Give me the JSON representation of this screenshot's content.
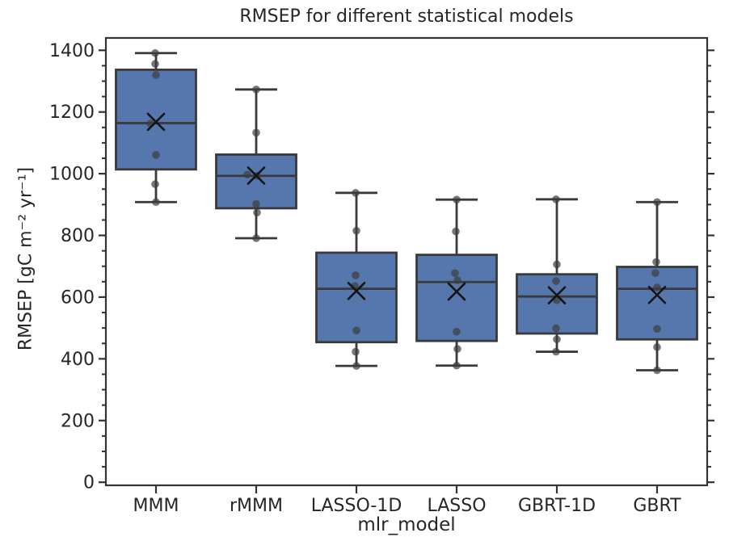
{
  "chart_data": {
    "type": "box",
    "title": "RMSEP for different statistical models",
    "xlabel": "mlr_model",
    "ylabel": "RMSEP [gC m⁻² yr⁻¹]",
    "categories": [
      "MMM",
      "rMMM",
      "LASSO-1D",
      "LASSO",
      "GBRT-1D",
      "GBRT"
    ],
    "ylim": [
      -10,
      1440
    ],
    "yticks": [
      0,
      200,
      400,
      600,
      800,
      1000,
      1200,
      1400
    ],
    "ytick_minor_step": 50,
    "grid": false,
    "legend": "none",
    "boxes": [
      {
        "label": "MMM",
        "whislo": 908,
        "q1": 1014,
        "med": 1164,
        "mean": 1168,
        "q3": 1337,
        "whishi": 1391,
        "points": [
          [
            1391,
            -1
          ],
          [
            1356,
            -1
          ],
          [
            1320,
            0
          ],
          [
            1162,
            -7
          ],
          [
            1061,
            0
          ],
          [
            966,
            -1
          ],
          [
            908,
            0
          ]
        ]
      },
      {
        "label": "rMMM",
        "whislo": 791,
        "q1": 888,
        "med": 993,
        "mean": 994,
        "q3": 1062,
        "whishi": 1273,
        "points": [
          [
            1273,
            0
          ],
          [
            1133,
            0
          ],
          [
            997,
            -11
          ],
          [
            993,
            1
          ],
          [
            902,
            0
          ],
          [
            874,
            1
          ],
          [
            791,
            0
          ]
        ]
      },
      {
        "label": "LASSO-1D",
        "whislo": 377,
        "q1": 454,
        "med": 627,
        "mean": 620,
        "q3": 744,
        "whishi": 938,
        "points": [
          [
            938,
            -1
          ],
          [
            815,
            0
          ],
          [
            671,
            -1
          ],
          [
            636,
            -2
          ],
          [
            492,
            0
          ],
          [
            423,
            -1
          ],
          [
            377,
            0
          ]
        ]
      },
      {
        "label": "LASSO",
        "whislo": 378,
        "q1": 458,
        "med": 649,
        "mean": 618,
        "q3": 737,
        "whishi": 916,
        "points": [
          [
            916,
            0
          ],
          [
            813,
            -1
          ],
          [
            678,
            -2
          ],
          [
            655,
            1
          ],
          [
            488,
            0
          ],
          [
            432,
            1
          ],
          [
            378,
            0
          ]
        ]
      },
      {
        "label": "GBRT-1D",
        "whislo": 423,
        "q1": 482,
        "med": 602,
        "mean": 606,
        "q3": 674,
        "whishi": 917,
        "points": [
          [
            917,
            -1
          ],
          [
            706,
            0
          ],
          [
            652,
            -1
          ],
          [
            590,
            0
          ],
          [
            499,
            -1
          ],
          [
            463,
            0
          ],
          [
            423,
            -1
          ]
        ]
      },
      {
        "label": "GBRT",
        "whislo": 363,
        "q1": 463,
        "med": 627,
        "mean": 607,
        "q3": 698,
        "whishi": 908,
        "points": [
          [
            908,
            0
          ],
          [
            714,
            -1
          ],
          [
            678,
            -2
          ],
          [
            631,
            0
          ],
          [
            497,
            0
          ],
          [
            438,
            0
          ],
          [
            363,
            0
          ]
        ]
      }
    ],
    "style": {
      "box_fill": "#5577AD",
      "box_edge": "#3A3A3A",
      "median_color": "#3A3A3A",
      "whisker_color": "#3A3A3A",
      "point_color": "#3D3D3D",
      "mean_marker_color": "#141414",
      "spine_color": "#333333",
      "tick_color": "#333333",
      "text_color": "#262626",
      "background": "#FFFFFF"
    }
  }
}
